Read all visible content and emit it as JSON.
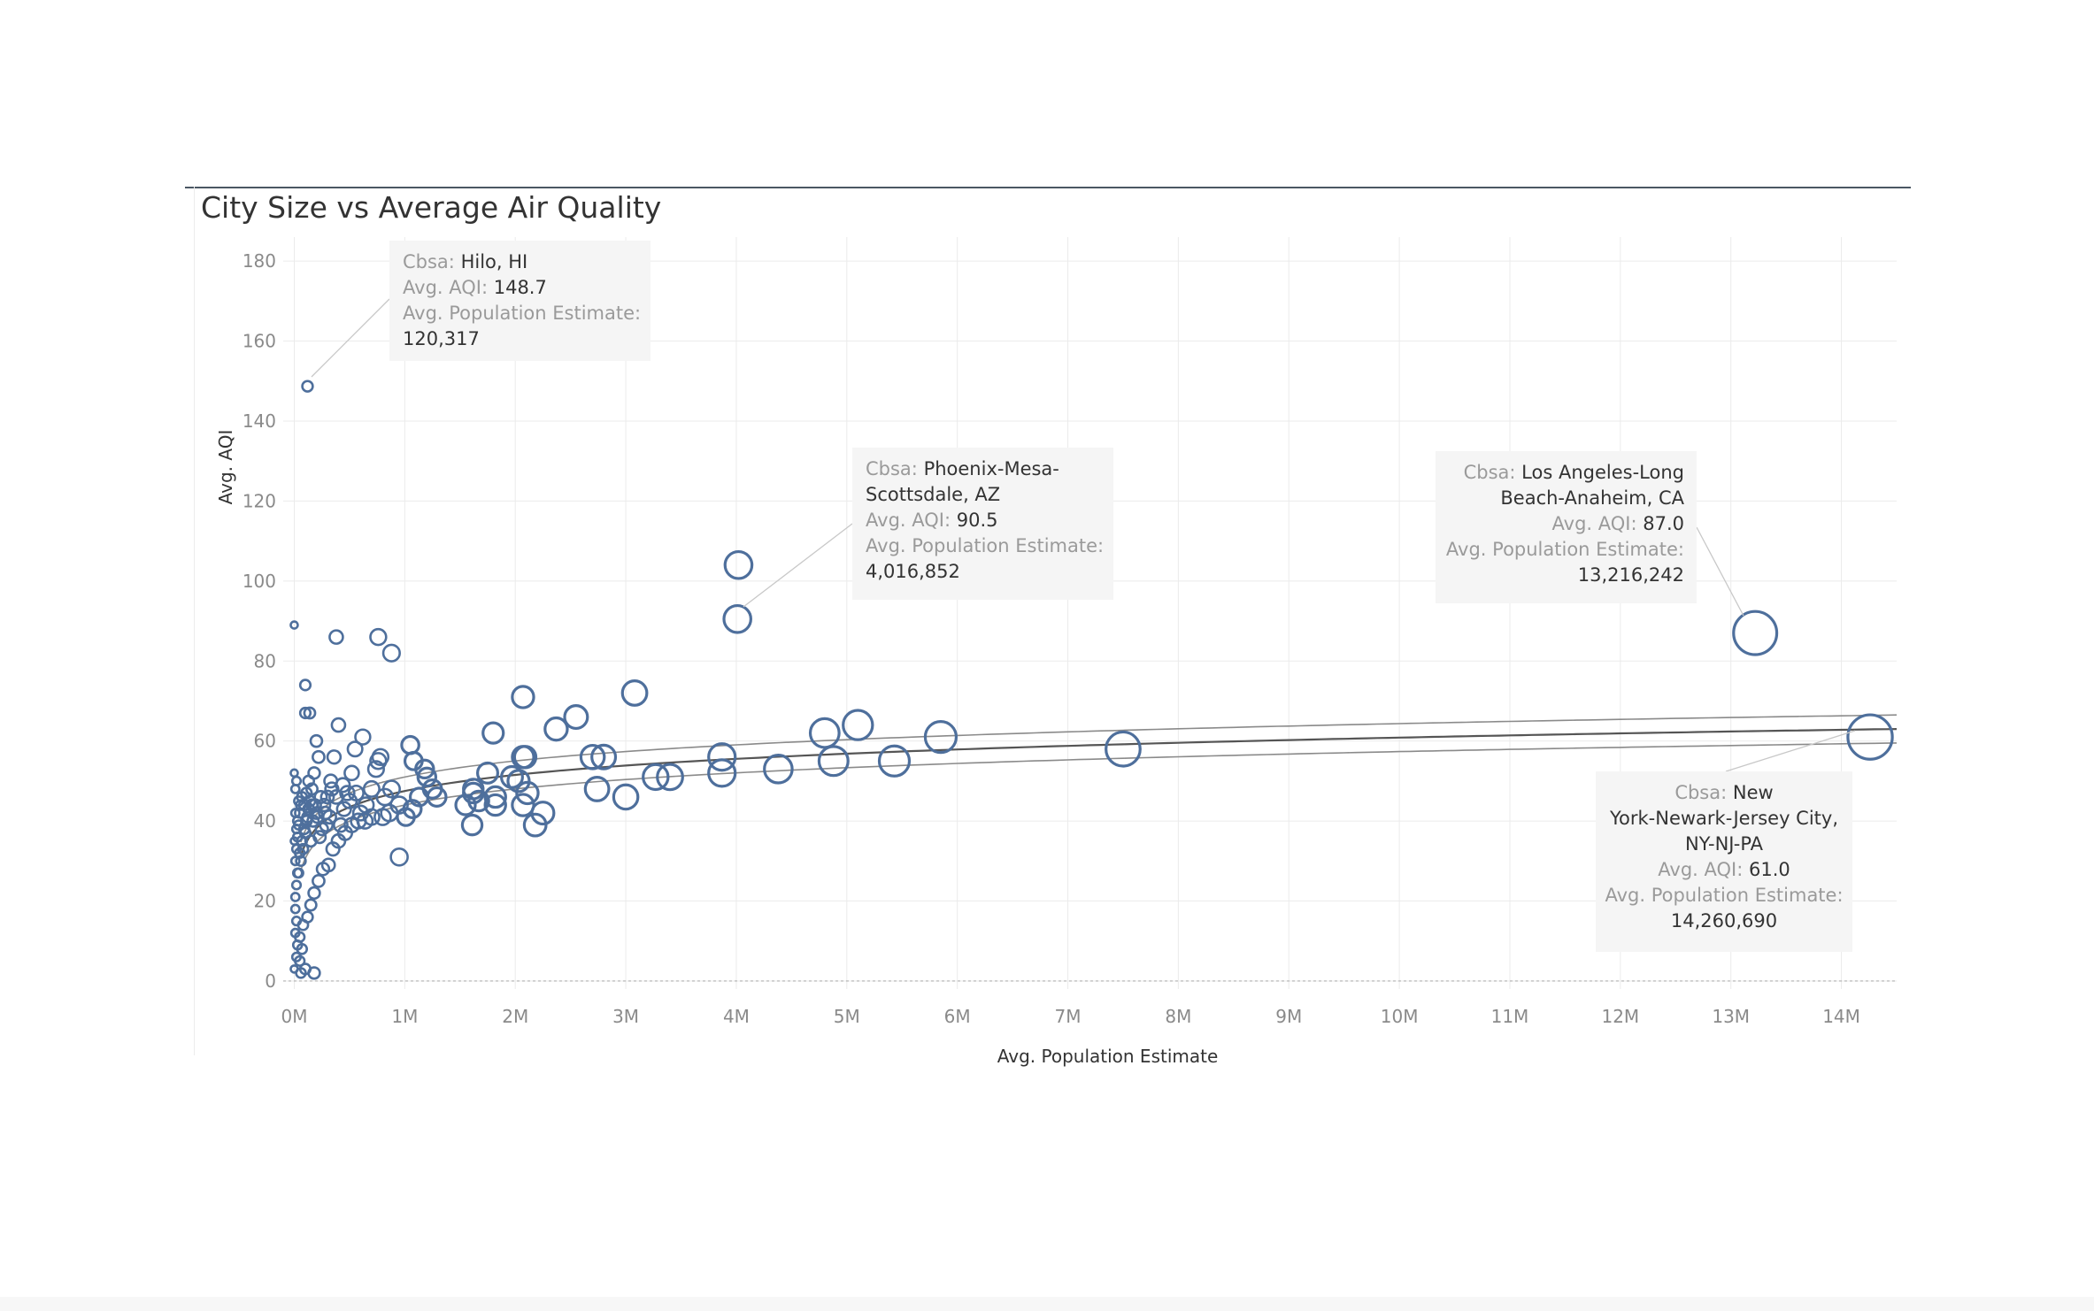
{
  "chart_data": {
    "type": "scatter",
    "title": "City Size vs Average Air Quality",
    "xlabel": "Avg. Population Estimate",
    "ylabel": "Avg. AQI",
    "xlim": [
      -0.1,
      14.5
    ],
    "ylim": [
      -2,
      186
    ],
    "x_unit_note": "millions",
    "x_ticks": [
      0,
      1,
      2,
      3,
      4,
      5,
      6,
      7,
      8,
      9,
      10,
      11,
      12,
      13,
      14
    ],
    "x_tick_labels": [
      "0M",
      "1M",
      "2M",
      "3M",
      "4M",
      "5M",
      "6M",
      "7M",
      "8M",
      "9M",
      "10M",
      "11M",
      "12M",
      "13M",
      "14M"
    ],
    "y_ticks": [
      0,
      20,
      40,
      60,
      80,
      100,
      120,
      140,
      160,
      180
    ],
    "y_tick_labels": [
      "0",
      "20",
      "40",
      "60",
      "80",
      "100",
      "120",
      "140",
      "160",
      "180"
    ],
    "grid": true,
    "colors": {
      "points": "#4e6f9c",
      "trend": "#555555",
      "band": "#8a8a8a",
      "annotation_bg": "#f5f5f5",
      "title_rule": "#4a5763"
    },
    "trend": {
      "type": "log",
      "a": 47.5,
      "b": 5.8,
      "x0": 0.06,
      "band_width": 3.5
    },
    "points": [
      {
        "x": 0.12,
        "y": 148.7
      },
      {
        "x": 0.0,
        "y": 89
      },
      {
        "x": 0.38,
        "y": 86
      },
      {
        "x": 0.76,
        "y": 86
      },
      {
        "x": 0.88,
        "y": 82
      },
      {
        "x": 0.1,
        "y": 74
      },
      {
        "x": 0.1,
        "y": 67
      },
      {
        "x": 0.14,
        "y": 67
      },
      {
        "x": 2.07,
        "y": 71
      },
      {
        "x": 3.08,
        "y": 72
      },
      {
        "x": 4.02,
        "y": 104
      },
      {
        "x": 4.01,
        "y": 90.5
      },
      {
        "x": 13.22,
        "y": 87.0
      },
      {
        "x": 14.26,
        "y": 61.0
      },
      {
        "x": 2.55,
        "y": 66
      },
      {
        "x": 2.37,
        "y": 63
      },
      {
        "x": 1.8,
        "y": 62
      },
      {
        "x": 1.05,
        "y": 59
      },
      {
        "x": 0.62,
        "y": 61
      },
      {
        "x": 4.8,
        "y": 62
      },
      {
        "x": 5.1,
        "y": 64
      },
      {
        "x": 5.85,
        "y": 61
      },
      {
        "x": 7.5,
        "y": 58
      },
      {
        "x": 3.87,
        "y": 56
      },
      {
        "x": 3.87,
        "y": 52
      },
      {
        "x": 4.38,
        "y": 53
      },
      {
        "x": 4.88,
        "y": 55
      },
      {
        "x": 5.43,
        "y": 55
      },
      {
        "x": 3.4,
        "y": 51
      },
      {
        "x": 3.27,
        "y": 51
      },
      {
        "x": 3.0,
        "y": 46
      },
      {
        "x": 2.74,
        "y": 48
      },
      {
        "x": 2.7,
        "y": 56
      },
      {
        "x": 2.8,
        "y": 56
      },
      {
        "x": 2.07,
        "y": 56
      },
      {
        "x": 2.09,
        "y": 56
      },
      {
        "x": 1.97,
        "y": 51
      },
      {
        "x": 2.03,
        "y": 50
      },
      {
        "x": 1.75,
        "y": 52
      },
      {
        "x": 2.11,
        "y": 47
      },
      {
        "x": 2.07,
        "y": 44
      },
      {
        "x": 1.82,
        "y": 46
      },
      {
        "x": 1.82,
        "y": 44
      },
      {
        "x": 1.67,
        "y": 45
      },
      {
        "x": 1.55,
        "y": 44
      },
      {
        "x": 1.62,
        "y": 47
      },
      {
        "x": 1.62,
        "y": 48
      },
      {
        "x": 2.25,
        "y": 42
      },
      {
        "x": 2.18,
        "y": 39
      },
      {
        "x": 1.61,
        "y": 39
      },
      {
        "x": 1.29,
        "y": 46
      },
      {
        "x": 1.25,
        "y": 48
      },
      {
        "x": 1.2,
        "y": 51
      },
      {
        "x": 1.18,
        "y": 53
      },
      {
        "x": 1.08,
        "y": 55
      },
      {
        "x": 1.13,
        "y": 46
      },
      {
        "x": 1.07,
        "y": 43
      },
      {
        "x": 1.01,
        "y": 41
      },
      {
        "x": 0.95,
        "y": 31
      },
      {
        "x": 0.95,
        "y": 44
      },
      {
        "x": 0.88,
        "y": 48
      },
      {
        "x": 0.86,
        "y": 42
      },
      {
        "x": 0.82,
        "y": 46
      },
      {
        "x": 0.8,
        "y": 41
      },
      {
        "x": 0.76,
        "y": 55
      },
      {
        "x": 0.74,
        "y": 53
      },
      {
        "x": 0.78,
        "y": 56
      },
      {
        "x": 0.7,
        "y": 48
      },
      {
        "x": 0.65,
        "y": 44
      },
      {
        "x": 0.6,
        "y": 42
      },
      {
        "x": 0.55,
        "y": 58
      },
      {
        "x": 0.52,
        "y": 52
      },
      {
        "x": 0.48,
        "y": 47
      },
      {
        "x": 0.45,
        "y": 43
      },
      {
        "x": 0.42,
        "y": 39
      },
      {
        "x": 0.4,
        "y": 64
      },
      {
        "x": 0.36,
        "y": 56
      },
      {
        "x": 0.33,
        "y": 50
      },
      {
        "x": 0.3,
        "y": 46
      },
      {
        "x": 0.28,
        "y": 42
      },
      {
        "x": 0.25,
        "y": 38
      },
      {
        "x": 0.22,
        "y": 56
      },
      {
        "x": 0.2,
        "y": 60
      },
      {
        "x": 0.18,
        "y": 52
      },
      {
        "x": 0.16,
        "y": 48
      },
      {
        "x": 0.14,
        "y": 45
      },
      {
        "x": 0.12,
        "y": 41
      },
      {
        "x": 0.1,
        "y": 37
      },
      {
        "x": 0.08,
        "y": 33
      },
      {
        "x": 0.06,
        "y": 30
      },
      {
        "x": 0.04,
        "y": 27
      },
      {
        "x": 0.02,
        "y": 24
      },
      {
        "x": 0.01,
        "y": 21
      },
      {
        "x": 0.01,
        "y": 18
      },
      {
        "x": 0.02,
        "y": 15
      },
      {
        "x": 0.01,
        "y": 12
      },
      {
        "x": 0.03,
        "y": 9
      },
      {
        "x": 0.02,
        "y": 6
      },
      {
        "x": 0.0,
        "y": 3
      },
      {
        "x": 0.06,
        "y": 2
      },
      {
        "x": 0.1,
        "y": 3
      },
      {
        "x": 0.18,
        "y": 2
      },
      {
        "x": 0.05,
        "y": 5
      },
      {
        "x": 0.07,
        "y": 8
      },
      {
        "x": 0.05,
        "y": 11
      },
      {
        "x": 0.08,
        "y": 14
      },
      {
        "x": 0.12,
        "y": 16
      },
      {
        "x": 0.15,
        "y": 19
      },
      {
        "x": 0.18,
        "y": 22
      },
      {
        "x": 0.22,
        "y": 25
      },
      {
        "x": 0.26,
        "y": 28
      },
      {
        "x": 0.31,
        "y": 29
      },
      {
        "x": 0.35,
        "y": 33
      },
      {
        "x": 0.4,
        "y": 35
      },
      {
        "x": 0.46,
        "y": 37
      },
      {
        "x": 0.52,
        "y": 39
      },
      {
        "x": 0.58,
        "y": 40
      },
      {
        "x": 0.64,
        "y": 40
      },
      {
        "x": 0.7,
        "y": 41
      },
      {
        "x": 0.34,
        "y": 48
      },
      {
        "x": 0.38,
        "y": 46
      },
      {
        "x": 0.44,
        "y": 49
      },
      {
        "x": 0.5,
        "y": 45
      },
      {
        "x": 0.56,
        "y": 47
      },
      {
        "x": 0.03,
        "y": 36
      },
      {
        "x": 0.04,
        "y": 39
      },
      {
        "x": 0.05,
        "y": 42
      },
      {
        "x": 0.06,
        "y": 44
      },
      {
        "x": 0.07,
        "y": 46
      },
      {
        "x": 0.09,
        "y": 38
      },
      {
        "x": 0.11,
        "y": 40
      },
      {
        "x": 0.13,
        "y": 43
      },
      {
        "x": 0.15,
        "y": 35
      },
      {
        "x": 0.17,
        "y": 40
      },
      {
        "x": 0.19,
        "y": 44
      },
      {
        "x": 0.21,
        "y": 41
      },
      {
        "x": 0.23,
        "y": 36
      },
      {
        "x": 0.27,
        "y": 44
      },
      {
        "x": 0.29,
        "y": 39
      },
      {
        "x": 0.01,
        "y": 30
      },
      {
        "x": 0.02,
        "y": 33
      },
      {
        "x": 0.03,
        "y": 40
      },
      {
        "x": 0.04,
        "y": 45
      },
      {
        "x": 0.01,
        "y": 48
      },
      {
        "x": 0.02,
        "y": 50
      },
      {
        "x": 0.0,
        "y": 52
      },
      {
        "x": 0.01,
        "y": 42
      },
      {
        "x": 0.02,
        "y": 38
      },
      {
        "x": 0.0,
        "y": 35
      },
      {
        "x": 0.03,
        "y": 27
      },
      {
        "x": 0.05,
        "y": 32
      },
      {
        "x": 0.07,
        "y": 35
      },
      {
        "x": 0.09,
        "y": 44
      },
      {
        "x": 0.11,
        "y": 47
      },
      {
        "x": 0.13,
        "y": 50
      },
      {
        "x": 0.16,
        "y": 44
      },
      {
        "x": 0.2,
        "y": 42
      },
      {
        "x": 0.24,
        "y": 46
      },
      {
        "x": 0.32,
        "y": 41
      }
    ],
    "annotations": [
      {
        "cbsa": "Hilo, HI",
        "aqi": "148.7",
        "population": "120,317"
      },
      {
        "cbsa": "Phoenix-Mesa-Scottsdale, AZ",
        "aqi": "90.5",
        "population": "4,016,852"
      },
      {
        "cbsa": "Los Angeles-Long Beach-Anaheim, CA",
        "aqi": "87.0",
        "population": "13,216,242"
      },
      {
        "cbsa": "New York-Newark-Jersey City, NY-NJ-PA",
        "aqi": "61.0",
        "population": "14,260,690"
      }
    ],
    "annotation_labels": {
      "cbsa": "Cbsa:",
      "aqi": "Avg. AQI:",
      "population": "Avg. Population Estimate:"
    }
  }
}
